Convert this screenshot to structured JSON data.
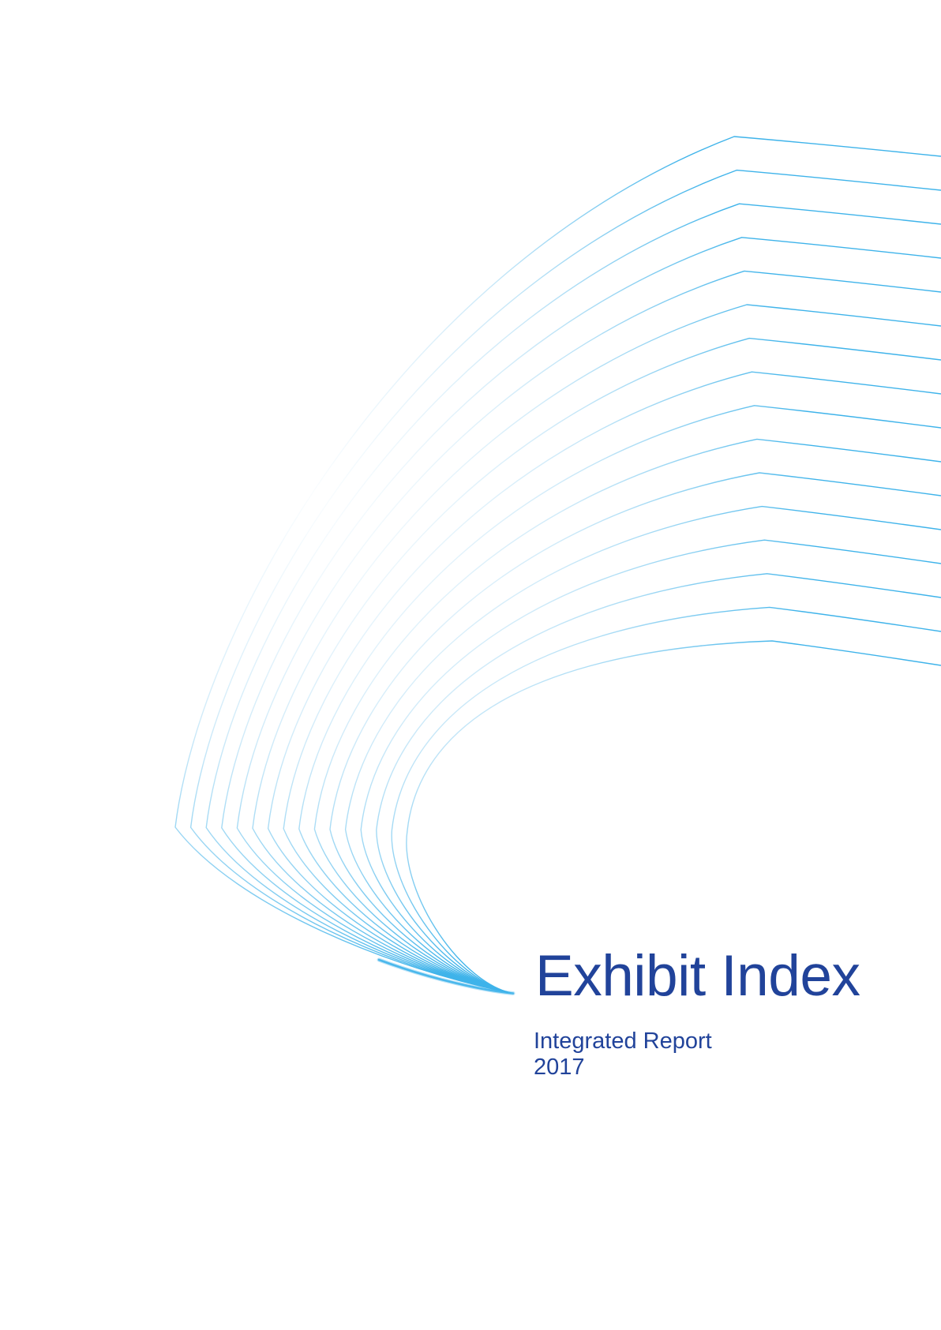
{
  "page": {
    "title": "Exhibit Index",
    "subtitle_line1": "Integrated Report",
    "subtitle_line2": "2017"
  },
  "colors": {
    "text_navy": "#21439A",
    "swoosh_accent": "#3EB3EA",
    "swoosh_mid": "#A9DAF4",
    "swoosh_faint": "#CDE9F8",
    "background": "#FFFFFF"
  },
  "decoration": {
    "name": "curved-line-swoosh",
    "line_count": 16
  }
}
